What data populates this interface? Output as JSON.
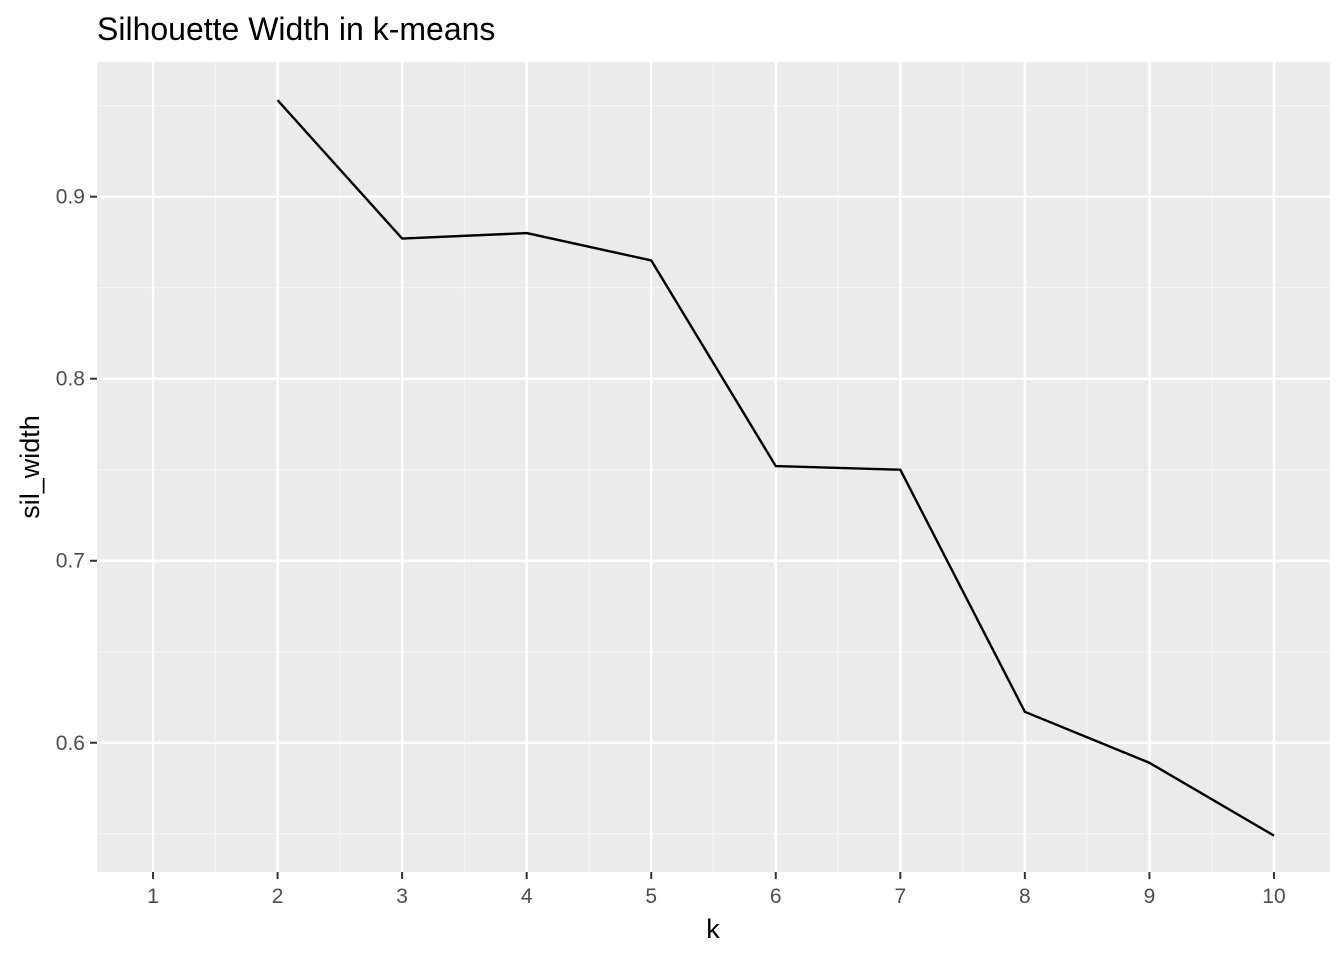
{
  "chart_data": {
    "type": "line",
    "title": "Silhouette Width in k-means",
    "xlabel": "k",
    "ylabel": "sil_width",
    "x": [
      1,
      2,
      3,
      4,
      5,
      6,
      7,
      8,
      9,
      10
    ],
    "x_tick_labels": [
      "1",
      "2",
      "3",
      "4",
      "5",
      "6",
      "7",
      "8",
      "9",
      "10"
    ],
    "y_tick_values": [
      0.6,
      0.7,
      0.8,
      0.9
    ],
    "y_tick_labels": [
      "0.6",
      "0.7",
      "0.8",
      "0.9"
    ],
    "xlim": [
      0.55,
      10.45
    ],
    "ylim": [
      0.529,
      0.974
    ],
    "grid": true,
    "series": [
      {
        "x": [
          2,
          3,
          4,
          5,
          6,
          7,
          8,
          9,
          10
        ],
        "values": [
          0.953,
          0.877,
          0.88,
          0.865,
          0.752,
          0.75,
          0.617,
          0.589,
          0.549
        ],
        "color": "#000000"
      }
    ],
    "colors": {
      "panel_background": "#EBEBEB",
      "grid_major": "#FFFFFF",
      "grid_minor": "#F5F5F5",
      "line": "#000000",
      "tick_text": "#4D4D4D",
      "tick_mark": "#333333"
    }
  }
}
